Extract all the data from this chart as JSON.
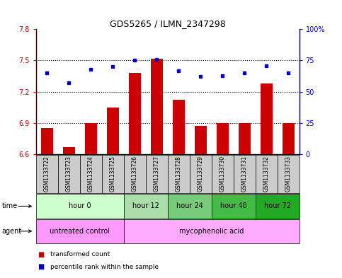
{
  "title": "GDS5265 / ILMN_2347298",
  "samples": [
    "GSM1133722",
    "GSM1133723",
    "GSM1133724",
    "GSM1133725",
    "GSM1133726",
    "GSM1133727",
    "GSM1133728",
    "GSM1133729",
    "GSM1133730",
    "GSM1133731",
    "GSM1133732",
    "GSM1133733"
  ],
  "bar_values": [
    6.85,
    6.67,
    6.9,
    7.05,
    7.38,
    7.52,
    7.12,
    6.87,
    6.9,
    6.9,
    7.28,
    6.9
  ],
  "percentile_values": [
    65,
    57,
    68,
    70,
    75,
    76,
    67,
    62,
    63,
    65,
    71,
    65
  ],
  "bar_color": "#cc0000",
  "dot_color": "#0000cc",
  "ylim_left": [
    6.6,
    7.8
  ],
  "ylim_right": [
    0,
    100
  ],
  "yticks_left": [
    6.6,
    6.9,
    7.2,
    7.5,
    7.8
  ],
  "yticks_right": [
    0,
    25,
    50,
    75,
    100
  ],
  "ytick_labels_left": [
    "6.6",
    "6.9",
    "7.2",
    "7.5",
    "7.8"
  ],
  "ytick_labels_right": [
    "0",
    "25",
    "50",
    "75",
    "100%"
  ],
  "hlines": [
    6.9,
    7.2,
    7.5
  ],
  "time_groups": [
    {
      "label": "hour 0",
      "start": 0,
      "end": 4,
      "color": "#ccffcc"
    },
    {
      "label": "hour 12",
      "start": 4,
      "end": 6,
      "color": "#aaddaa"
    },
    {
      "label": "hour 24",
      "start": 6,
      "end": 8,
      "color": "#77cc77"
    },
    {
      "label": "hour 48",
      "start": 8,
      "end": 10,
      "color": "#44bb44"
    },
    {
      "label": "hour 72",
      "start": 10,
      "end": 12,
      "color": "#22aa22"
    }
  ],
  "agent_groups": [
    {
      "label": "untreated control",
      "start": 0,
      "end": 4,
      "color": "#ff99ff"
    },
    {
      "label": "mycophenolic acid",
      "start": 4,
      "end": 12,
      "color": "#ffaaff"
    }
  ],
  "legend_red_label": "transformed count",
  "legend_blue_label": "percentile rank within the sample",
  "bar_color_legend": "#cc0000",
  "dot_color_legend": "#0000cc",
  "background_color": "#ffffff",
  "bar_width": 0.55,
  "base_value": 6.6,
  "time_row_label": "time",
  "agent_row_label": "agent",
  "sample_bg_color": "#cccccc",
  "title_fontsize": 9,
  "axis_label_fontsize": 7,
  "row_label_fontsize": 7,
  "row_text_fontsize": 7,
  "sample_fontsize": 5.5
}
